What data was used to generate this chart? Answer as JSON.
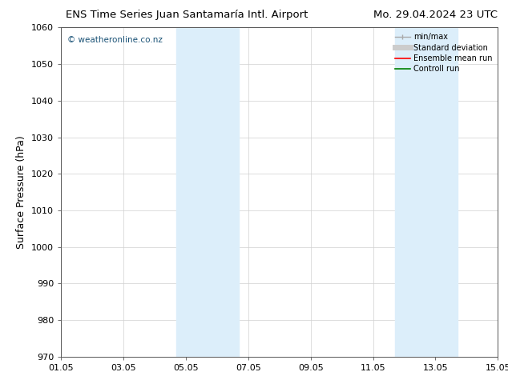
{
  "title_left": "ENS Time Series Juan Santamaría Intl. Airport",
  "title_right": "Mo. 29.04.2024 23 UTC",
  "ylabel": "Surface Pressure (hPa)",
  "xlim": [
    0,
    14
  ],
  "ylim": [
    970,
    1060
  ],
  "yticks": [
    970,
    980,
    990,
    1000,
    1010,
    1020,
    1030,
    1040,
    1050,
    1060
  ],
  "xtick_labels": [
    "01.05",
    "03.05",
    "05.05",
    "07.05",
    "09.05",
    "11.05",
    "13.05",
    "15.05"
  ],
  "xtick_positions": [
    0,
    2,
    4,
    6,
    8,
    10,
    12,
    14
  ],
  "shaded_bands": [
    {
      "xmin": 3.7,
      "xmax": 5.7,
      "color": "#dceefa"
    },
    {
      "xmin": 10.7,
      "xmax": 12.7,
      "color": "#dceefa"
    }
  ],
  "watermark": "© weatheronline.co.nz",
  "watermark_color": "#1a5276",
  "bg_color": "#ffffff",
  "plot_bg_color": "#ffffff",
  "grid_color": "#d0d0d0",
  "legend_items": [
    {
      "label": "min/max",
      "color": "#aaaaaa",
      "lw": 1.0
    },
    {
      "label": "Standard deviation",
      "color": "#cccccc",
      "lw": 5
    },
    {
      "label": "Ensemble mean run",
      "color": "#ff0000",
      "lw": 1.2
    },
    {
      "label": "Controll run",
      "color": "#008000",
      "lw": 1.2
    }
  ],
  "title_fontsize": 9.5,
  "tick_fontsize": 8,
  "ylabel_fontsize": 9
}
